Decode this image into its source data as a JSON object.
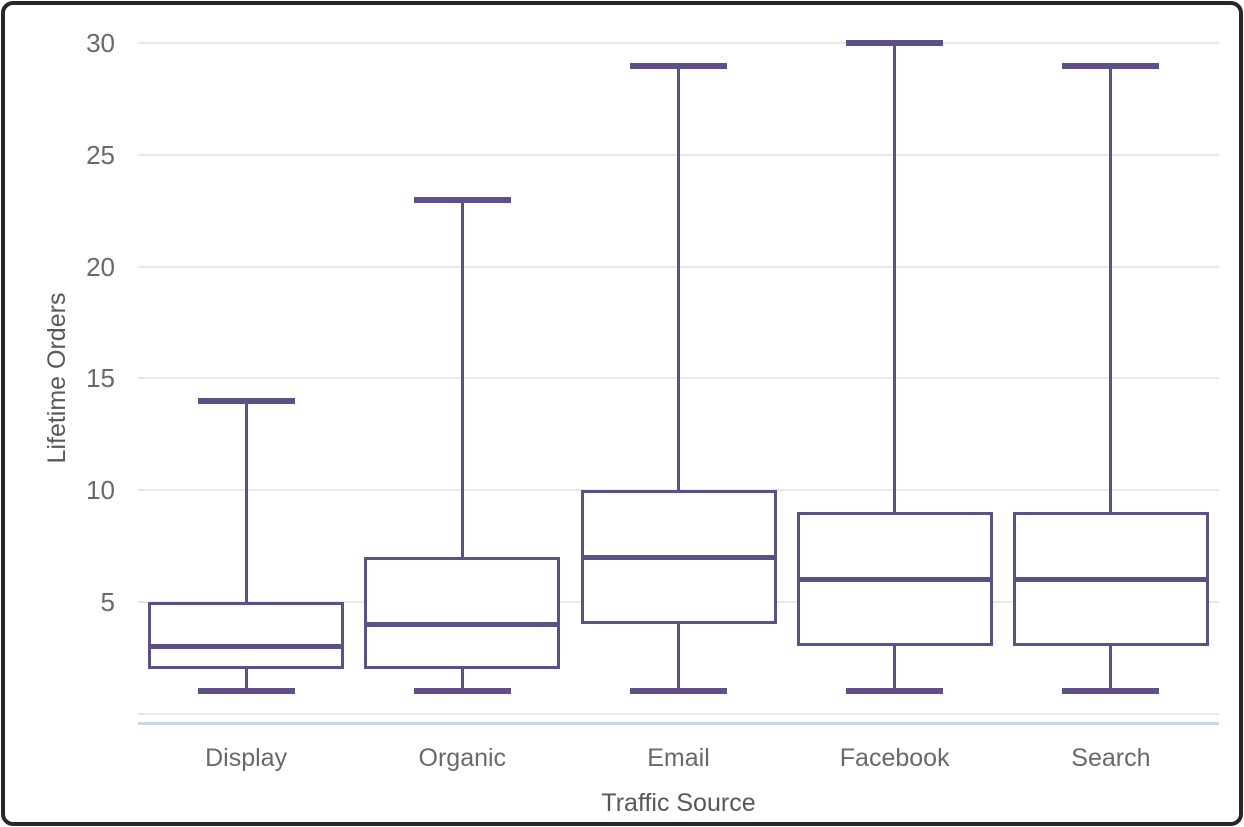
{
  "chart_data": {
    "type": "boxplot",
    "title": "",
    "xlabel": "Traffic Source",
    "ylabel": "Lifetime Orders",
    "categories": [
      "Display",
      "Organic",
      "Email",
      "Facebook",
      "Search"
    ],
    "series": [
      {
        "category": "Display",
        "min": 1,
        "q1": 2,
        "median": 3,
        "q3": 5,
        "max": 14
      },
      {
        "category": "Organic",
        "min": 1,
        "q1": 2,
        "median": 4,
        "q3": 7,
        "max": 23
      },
      {
        "category": "Email",
        "min": 1,
        "q1": 4,
        "median": 7,
        "q3": 10,
        "max": 29
      },
      {
        "category": "Facebook",
        "min": 1,
        "q1": 3,
        "median": 6,
        "q3": 9,
        "max": 30
      },
      {
        "category": "Search",
        "min": 1,
        "q1": 3,
        "median": 6,
        "q3": 9,
        "max": 29
      }
    ],
    "yticks": [
      5,
      10,
      15,
      20,
      25,
      30
    ],
    "ylim": [
      0,
      30
    ],
    "grid": true,
    "legend": "none"
  },
  "colors": {
    "box_stroke": "#5f4f87",
    "gridline": "#e8e8e8",
    "baseline": "#c9d6e8",
    "tick_text": "#696969",
    "axis_title_text": "#56585c",
    "frame_border": "#24282a"
  }
}
